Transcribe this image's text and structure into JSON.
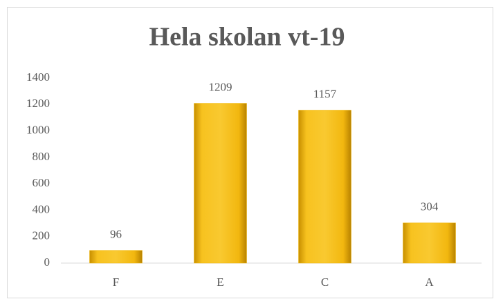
{
  "chart_data": {
    "type": "bar",
    "title": "Hela skolan vt-19",
    "categories": [
      "F",
      "E",
      "C",
      "A"
    ],
    "values": [
      96,
      1209,
      1157,
      304
    ],
    "color": "#f0b400",
    "ylim": [
      0,
      1400
    ],
    "yticks": [
      0,
      200,
      400,
      600,
      800,
      1000,
      1200,
      1400
    ],
    "grid": false,
    "data_labels": true
  }
}
